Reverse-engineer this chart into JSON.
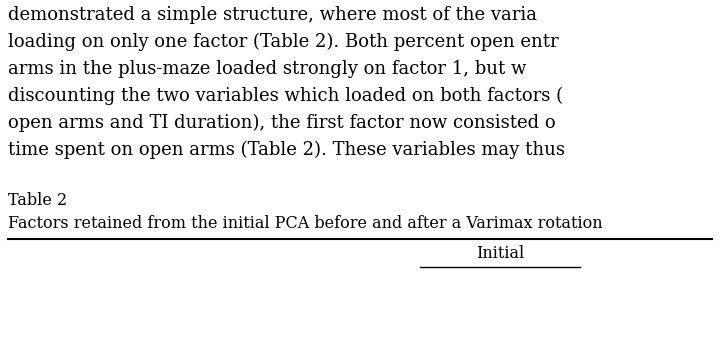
{
  "background_color": "#ffffff",
  "body_text_lines": [
    "demonstrated a simple structure, where most of the varia",
    "loading on only one factor (Table 2). Both percent open entr",
    "arms in the plus-maze loaded strongly on factor 1, but w",
    "discounting the two variables which loaded on both factors (",
    "open arms and TI duration), the first factor now consisted o",
    "time spent on open arms (Table 2). These variables may thus"
  ],
  "table_label": "Table 2",
  "table_caption": "Factors retained from the initial PCA before and after a Varimax rotation",
  "header_text": "Initial",
  "body_fontsize": 13.0,
  "table_label_fontsize": 11.5,
  "table_caption_fontsize": 11.5,
  "header_fontsize": 11.5,
  "line_color": "#000000",
  "text_color": "#000000",
  "fig_width": 7.2,
  "fig_height": 3.38,
  "dpi": 100
}
